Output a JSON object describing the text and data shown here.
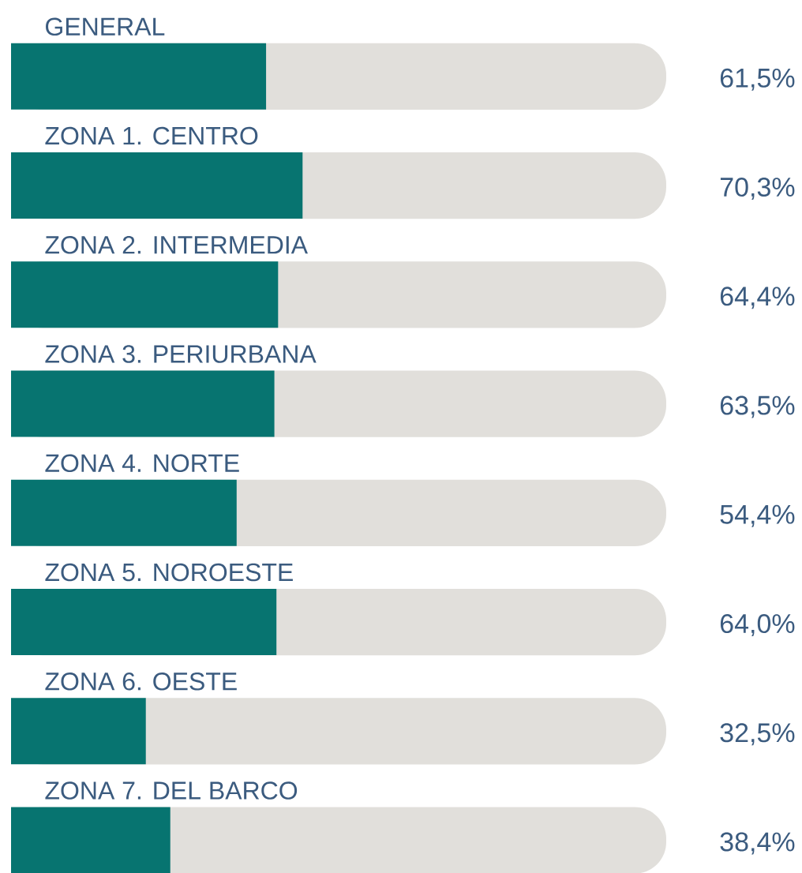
{
  "chart_data": {
    "type": "bar",
    "orientation": "horizontal",
    "categories": [
      "GENERAL",
      "ZONA 1. CENTRO",
      "ZONA 2. INTERMEDIA",
      "ZONA 3. PERIURBANA",
      "ZONA 4. NORTE",
      "ZONA 5. NOROESTE",
      "ZONA 6. OESTE",
      "ZONA 7. DEL BARCO"
    ],
    "values": [
      61.5,
      70.3,
      64.4,
      63.5,
      54.4,
      64.0,
      32.5,
      38.4
    ],
    "value_labels": [
      "61,5%",
      "70,3%",
      "64,4%",
      "63,5%",
      "54,4%",
      "64,0%",
      "32,5%",
      "38,4%"
    ],
    "color": "#077470",
    "xlim": [
      0,
      158
    ]
  }
}
